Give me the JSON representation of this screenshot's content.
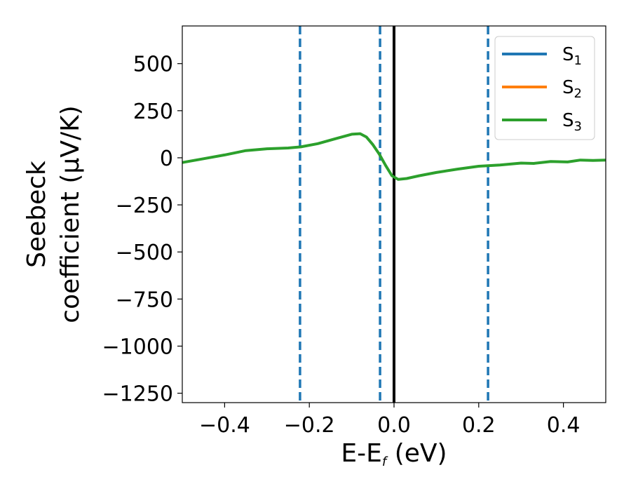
{
  "chart_data": {
    "type": "line",
    "xlabel": {
      "main": "E-E",
      "sub": "f",
      "unit": " (eV)"
    },
    "ylabel": {
      "line1": "Seebeck",
      "line2": "coefficient  (μV/K)"
    },
    "xlim": [
      -0.5,
      0.5
    ],
    "ylim": [
      -1300,
      700
    ],
    "xticks": [
      {
        "value": -0.4,
        "label": "−0.4"
      },
      {
        "value": -0.2,
        "label": "−0.2"
      },
      {
        "value": 0.0,
        "label": "0.0"
      },
      {
        "value": 0.2,
        "label": "0.2"
      },
      {
        "value": 0.4,
        "label": "0.4"
      }
    ],
    "yticks": [
      {
        "value": 500,
        "label": "500"
      },
      {
        "value": 250,
        "label": "250"
      },
      {
        "value": 0,
        "label": "0"
      },
      {
        "value": -250,
        "label": "−250"
      },
      {
        "value": -500,
        "label": "−500"
      },
      {
        "value": -750,
        "label": "−750"
      },
      {
        "value": -1000,
        "label": "−1000"
      },
      {
        "value": -1250,
        "label": "−1250"
      }
    ],
    "grid": false,
    "legend_position": "top-right",
    "series": [
      {
        "name": "S",
        "sub": "1",
        "color": "#1f77b4"
      },
      {
        "name": "S",
        "sub": "2",
        "color": "#ff7f0e"
      },
      {
        "name": "S",
        "sub": "3",
        "color": "#2ca02c"
      }
    ],
    "curve": {
      "color": "#2ca02c",
      "x": [
        -0.5,
        -0.45,
        -0.4,
        -0.35,
        -0.3,
        -0.25,
        -0.22,
        -0.18,
        -0.14,
        -0.1,
        -0.08,
        -0.065,
        -0.05,
        -0.035,
        -0.02,
        -0.005,
        0.01,
        0.03,
        0.06,
        0.1,
        0.15,
        0.2,
        0.25,
        0.3,
        0.33,
        0.37,
        0.41,
        0.44,
        0.47,
        0.5
      ],
      "y": [
        -25,
        -5,
        15,
        38,
        48,
        52,
        58,
        75,
        100,
        125,
        128,
        110,
        70,
        20,
        -40,
        -95,
        -115,
        -110,
        -95,
        -78,
        -60,
        -45,
        -38,
        -28,
        -30,
        -20,
        -22,
        -12,
        -14,
        -12
      ]
    },
    "vlines": [
      {
        "x": -0.222,
        "style": "dashed",
        "color": "#1f77b4"
      },
      {
        "x": -0.033,
        "style": "dashed",
        "color": "#1f77b4"
      },
      {
        "x": 0.222,
        "style": "dashed",
        "color": "#1f77b4"
      },
      {
        "x": 0.0,
        "style": "solid",
        "color": "#000000"
      }
    ]
  }
}
